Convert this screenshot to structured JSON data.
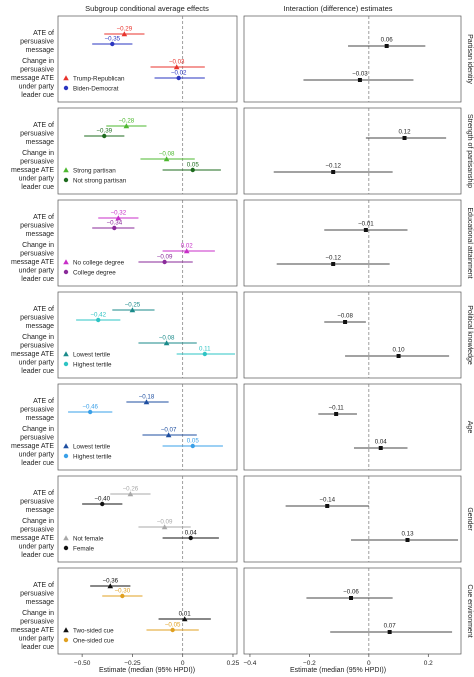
{
  "chart_data": {
    "type": "forest",
    "left_title": "Subgroup conditional average effects",
    "right_title": "Interaction (difference) estimates",
    "left_xlabel": "Estimate (median (95% HPDI))",
    "right_xlabel": "Estimate (median (95% HPDI))",
    "left_xlim": [
      -0.62,
      0.27
    ],
    "right_xlim": [
      -0.42,
      0.31
    ],
    "left_ticks": [
      -0.5,
      -0.25,
      0,
      0.25
    ],
    "left_tick_labels": [
      "−0.50",
      "−0.25",
      "0",
      "0.25"
    ],
    "right_ticks": [
      -0.4,
      -0.2,
      0,
      0.2
    ],
    "right_tick_labels": [
      "−0.4",
      "−0.2",
      "0",
      "0.2"
    ],
    "row_labels": [
      "ATE of persuasive message",
      "Change in persuasive message ATE under party leader cue"
    ],
    "panels": [
      {
        "title": "Partisan identity",
        "groups": [
          {
            "name": "Trump-Republican",
            "color": "#e8332c",
            "marker": "triangle",
            "ate": {
              "est": -0.29,
              "label": "−0.29",
              "lo": -0.39,
              "hi": -0.19
            },
            "cue": {
              "est": -0.03,
              "label": "−0.03",
              "lo": -0.16,
              "hi": 0.11
            }
          },
          {
            "name": "Biden-Democrat",
            "color": "#2a35c0",
            "marker": "circle",
            "ate": {
              "est": -0.35,
              "label": "−0.35",
              "lo": -0.45,
              "hi": -0.25
            },
            "cue": {
              "est": -0.02,
              "label": "−0.02",
              "lo": -0.14,
              "hi": 0.11
            }
          }
        ],
        "interaction": [
          {
            "est": 0.06,
            "label": "0.06",
            "lo": -0.07,
            "hi": 0.19
          },
          {
            "est": -0.03,
            "label": "−0.03",
            "lo": -0.22,
            "hi": 0.15
          }
        ]
      },
      {
        "title": "Strength of partisanship",
        "groups": [
          {
            "name": "Strong partisan",
            "color": "#4db82f",
            "marker": "triangle",
            "ate": {
              "est": -0.28,
              "label": "−0.28",
              "lo": -0.38,
              "hi": -0.18
            },
            "cue": {
              "est": -0.08,
              "label": "−0.08",
              "lo": -0.21,
              "hi": 0.06
            }
          },
          {
            "name": "Not strong partisan",
            "color": "#1e6b1e",
            "marker": "circle",
            "ate": {
              "est": -0.39,
              "label": "−0.39",
              "lo": -0.49,
              "hi": -0.29
            },
            "cue": {
              "est": 0.05,
              "label": "0.05",
              "lo": -0.1,
              "hi": 0.19
            }
          }
        ],
        "interaction": [
          {
            "est": 0.12,
            "label": "0.12",
            "lo": -0.01,
            "hi": 0.26
          },
          {
            "est": -0.12,
            "label": "−0.12",
            "lo": -0.32,
            "hi": 0.08
          }
        ]
      },
      {
        "title": "Educational attainment",
        "groups": [
          {
            "name": "No college degree",
            "color": "#c82fc8",
            "marker": "triangle",
            "ate": {
              "est": -0.32,
              "label": "−0.32",
              "lo": -0.42,
              "hi": -0.22
            },
            "cue": {
              "est": 0.02,
              "label": "0.02",
              "lo": -0.1,
              "hi": 0.16
            }
          },
          {
            "name": "College degree",
            "color": "#8a2a9a",
            "marker": "circle",
            "ate": {
              "est": -0.34,
              "label": "−0.34",
              "lo": -0.45,
              "hi": -0.24
            },
            "cue": {
              "est": -0.09,
              "label": "−0.09",
              "lo": -0.22,
              "hi": 0.05
            }
          }
        ],
        "interaction": [
          {
            "est": -0.01,
            "label": "−0.01",
            "lo": -0.15,
            "hi": 0.13
          },
          {
            "est": -0.12,
            "label": "−0.12",
            "lo": -0.31,
            "hi": 0.07
          }
        ]
      },
      {
        "title": "Political knowledge",
        "groups": [
          {
            "name": "Lowest tertile",
            "color": "#1a8a8a",
            "marker": "triangle",
            "ate": {
              "est": -0.25,
              "label": "−0.25",
              "lo": -0.35,
              "hi": -0.14
            },
            "cue": {
              "est": -0.08,
              "label": "−0.08",
              "lo": -0.22,
              "hi": 0.07
            }
          },
          {
            "name": "Highest tertile",
            "color": "#2ec4c4",
            "marker": "circle",
            "ate": {
              "est": -0.42,
              "label": "−0.42",
              "lo": -0.53,
              "hi": -0.31
            },
            "cue": {
              "est": 0.11,
              "label": "0.11",
              "lo": -0.03,
              "hi": 0.26
            }
          }
        ],
        "interaction": [
          {
            "est": -0.08,
            "label": "−0.08",
            "lo": -0.15,
            "hi": -0.01
          },
          {
            "est": 0.1,
            "label": "0.10",
            "lo": -0.08,
            "hi": 0.27
          }
        ]
      },
      {
        "title": "Age",
        "groups": [
          {
            "name": "Lowest tertile",
            "color": "#1f4fa0",
            "marker": "triangle",
            "ate": {
              "est": -0.18,
              "label": "−0.18",
              "lo": -0.28,
              "hi": -0.07
            },
            "cue": {
              "est": -0.07,
              "label": "−0.07",
              "lo": -0.2,
              "hi": 0.07
            }
          },
          {
            "name": "Highest tertile",
            "color": "#3aa0e8",
            "marker": "circle",
            "ate": {
              "est": -0.46,
              "label": "−0.46",
              "lo": -0.57,
              "hi": -0.35
            },
            "cue": {
              "est": 0.05,
              "label": "0.05",
              "lo": -0.1,
              "hi": 0.2
            }
          }
        ],
        "interaction": [
          {
            "est": -0.11,
            "label": "−0.11",
            "lo": -0.17,
            "hi": -0.04
          },
          {
            "est": 0.04,
            "label": "0.04",
            "lo": -0.05,
            "hi": 0.13
          }
        ]
      },
      {
        "title": "Gender",
        "groups": [
          {
            "name": "Not female",
            "color": "#a8a8a8",
            "marker": "triangle",
            "ate": {
              "est": -0.26,
              "label": "−0.26",
              "lo": -0.36,
              "hi": -0.16
            },
            "cue": {
              "est": -0.09,
              "label": "−0.09",
              "lo": -0.22,
              "hi": 0.04
            }
          },
          {
            "name": "Female",
            "color": "#111111",
            "marker": "circle",
            "ate": {
              "est": -0.4,
              "label": "−0.40",
              "lo": -0.5,
              "hi": -0.3
            },
            "cue": {
              "est": 0.04,
              "label": "0.04",
              "lo": -0.1,
              "hi": 0.18
            }
          }
        ],
        "interaction": [
          {
            "est": -0.14,
            "label": "−0.14",
            "lo": -0.28,
            "hi": 0.0
          },
          {
            "est": 0.13,
            "label": "0.13",
            "lo": -0.06,
            "hi": 0.3
          }
        ]
      },
      {
        "title": "Cue environment",
        "groups": [
          {
            "name": "Two-sided cue",
            "color": "#111111",
            "marker": "triangle",
            "ate": {
              "est": -0.36,
              "label": "−0.36",
              "lo": -0.46,
              "hi": -0.26
            },
            "cue": {
              "est": 0.01,
              "label": "0.01",
              "lo": -0.12,
              "hi": 0.14
            }
          },
          {
            "name": "One-sided cue",
            "color": "#e0a020",
            "marker": "circle",
            "ate": {
              "est": -0.3,
              "label": "−0.30",
              "lo": -0.4,
              "hi": -0.2
            },
            "cue": {
              "est": -0.05,
              "label": "−0.05",
              "lo": -0.18,
              "hi": 0.08
            }
          }
        ],
        "interaction": [
          {
            "est": -0.06,
            "label": "−0.06",
            "lo": -0.21,
            "hi": 0.08
          },
          {
            "est": 0.07,
            "label": "0.07",
            "lo": -0.13,
            "hi": 0.28
          }
        ]
      }
    ]
  }
}
